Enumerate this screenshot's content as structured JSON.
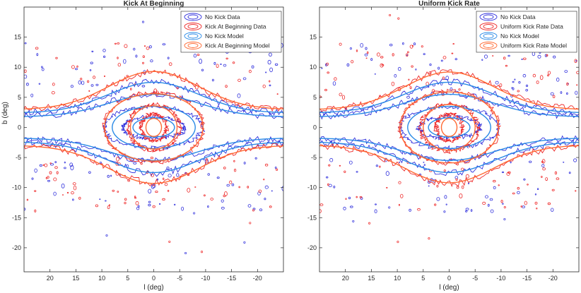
{
  "chart_data": [
    {
      "type": "contour",
      "title": "Kick At Beginning",
      "xlabel": "l (deg)",
      "ylabel": "b (deg)",
      "xlim": [
        25,
        -25
      ],
      "ylim": [
        -24,
        20
      ],
      "x_reversed": true,
      "xticks": [
        20,
        15,
        10,
        5,
        0,
        -5,
        -10,
        -15,
        -20
      ],
      "xtick_labels": [
        "20",
        "15",
        "10",
        "5",
        "0",
        "-5",
        "-10",
        "-15",
        "-20"
      ],
      "yticks": [
        -20,
        -15,
        -10,
        -5,
        0,
        5,
        10,
        15
      ],
      "ytick_labels": [
        "-20",
        "-15",
        "-10",
        "-5",
        "0",
        "5",
        "10",
        "15"
      ],
      "legend_position": "top-right",
      "series": [
        {
          "name": "No Kick Data",
          "color": "#3333dd",
          "style": "data",
          "levels": [
            {
              "a": 6,
              "b": 1.8
            },
            {
              "a": 9.5,
              "b": 3.4
            },
            {
              "a": 24,
              "b": 5.6
            },
            {
              "a": 24,
              "b": 7.6
            }
          ]
        },
        {
          "name": "Kick At Beginning Data",
          "color": "#ee2a2a",
          "style": "data",
          "levels": [
            {
              "a": 2.5,
              "b": 2.2
            },
            {
              "a": 5,
              "b": 3.8
            },
            {
              "a": 9.5,
              "b": 5.8
            },
            {
              "a": 24,
              "b": 9.2
            }
          ]
        },
        {
          "name": "No Kick Model",
          "color": "#2a8ae6",
          "style": "model",
          "levels": [
            {
              "a": 4,
              "b": 1.6
            },
            {
              "a": 8,
              "b": 3.5
            },
            {
              "a": 24,
              "b": 5.5
            },
            {
              "a": 24,
              "b": 7.5
            }
          ]
        },
        {
          "name": "Kick At Beginning Model",
          "color": "#ff6a33",
          "style": "model",
          "levels": [
            {
              "a": 1.5,
              "b": 1.5
            },
            {
              "a": 4.5,
              "b": 3.6
            },
            {
              "a": 9.5,
              "b": 5.6
            },
            {
              "a": 24,
              "b": 9.3
            }
          ]
        }
      ]
    },
    {
      "type": "contour",
      "title": "Uniform Kick Rate",
      "xlabel": "l (deg)",
      "ylabel": "",
      "xlim": [
        25,
        -25
      ],
      "ylim": [
        -24,
        20
      ],
      "x_reversed": true,
      "xticks": [
        20,
        15,
        10,
        5,
        0,
        -5,
        -10,
        -15,
        -20
      ],
      "xtick_labels": [
        "20",
        "15",
        "10",
        "5",
        "0",
        "-5",
        "-10",
        "-15",
        "-20"
      ],
      "yticks": [
        -20,
        -15,
        -10,
        -5,
        0,
        5,
        10,
        15
      ],
      "ytick_labels": [
        "-20",
        "-15",
        "-10",
        "-5",
        "0",
        "5",
        "10",
        "15"
      ],
      "legend_position": "top-right",
      "series": [
        {
          "name": "No Kick Data",
          "color": "#3333dd",
          "style": "data",
          "levels": [
            {
              "a": 6,
              "b": 1.8
            },
            {
              "a": 9.5,
              "b": 3.4
            },
            {
              "a": 24,
              "b": 5.6
            },
            {
              "a": 24,
              "b": 7.6
            }
          ]
        },
        {
          "name": "Uniform Kick Rate Data",
          "color": "#ee2a2a",
          "style": "data",
          "levels": [
            {
              "a": 2.5,
              "b": 2.2
            },
            {
              "a": 5.5,
              "b": 4
            },
            {
              "a": 9.5,
              "b": 6
            },
            {
              "a": 24,
              "b": 9.4
            }
          ]
        },
        {
          "name": "No Kick Model",
          "color": "#2a8ae6",
          "style": "model",
          "levels": [
            {
              "a": 4,
              "b": 1.6
            },
            {
              "a": 8,
              "b": 3.5
            },
            {
              "a": 24,
              "b": 5.5
            },
            {
              "a": 24,
              "b": 7.5
            }
          ]
        },
        {
          "name": "Uniform Kick Rate Model",
          "color": "#ff6a33",
          "style": "model",
          "levels": [
            {
              "a": 1.5,
              "b": 1.5
            },
            {
              "a": 5,
              "b": 3.8
            },
            {
              "a": 9.5,
              "b": 5.9
            },
            {
              "a": 24,
              "b": 9.2
            }
          ]
        }
      ]
    }
  ]
}
